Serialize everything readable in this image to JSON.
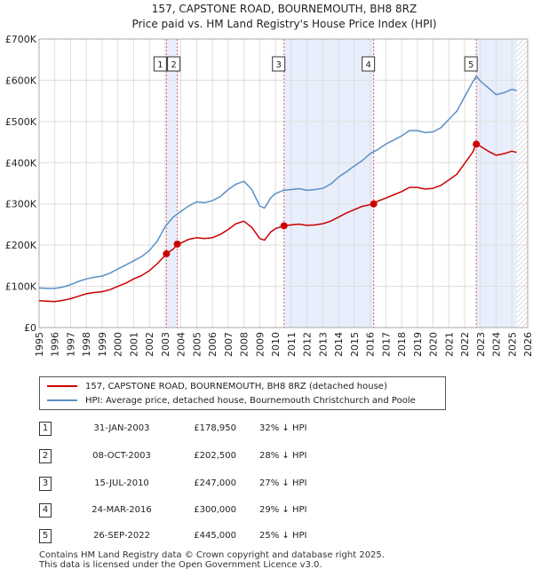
{
  "chart_data": {
    "type": "line",
    "title": "157, CAPSTONE ROAD, BOURNEMOUTH, BH8 8RZ",
    "subtitle": "Price paid vs. HM Land Registry's House Price Index (HPI)",
    "xlim": [
      1995,
      2026
    ],
    "ylim": [
      0,
      700000
    ],
    "x_ticks": [
      "1995",
      "1996",
      "1997",
      "1998",
      "1999",
      "2000",
      "2001",
      "2002",
      "2003",
      "2004",
      "2005",
      "2006",
      "2007",
      "2008",
      "2009",
      "2010",
      "2011",
      "2012",
      "2013",
      "2014",
      "2015",
      "2016",
      "2017",
      "2018",
      "2019",
      "2020",
      "2021",
      "2022",
      "2023",
      "2024",
      "2025",
      "2026"
    ],
    "y_ticks": [
      {
        "value": 0,
        "label": "£0"
      },
      {
        "value": 100000,
        "label": "£100K"
      },
      {
        "value": 200000,
        "label": "£200K"
      },
      {
        "value": 300000,
        "label": "£300K"
      },
      {
        "value": 400000,
        "label": "£400K"
      },
      {
        "value": 500000,
        "label": "£500K"
      },
      {
        "value": 600000,
        "label": "£600K"
      },
      {
        "value": 700000,
        "label": "£700K"
      }
    ],
    "series": [
      {
        "name": "HPI",
        "color": "#5b8fc7",
        "points": [
          [
            1995.0,
            96000
          ],
          [
            1995.5,
            95000
          ],
          [
            1996.0,
            95000
          ],
          [
            1996.5,
            98000
          ],
          [
            1997.0,
            104000
          ],
          [
            1997.5,
            112000
          ],
          [
            1998.0,
            118000
          ],
          [
            1998.5,
            122000
          ],
          [
            1999.0,
            125000
          ],
          [
            1999.5,
            132000
          ],
          [
            2000.0,
            142000
          ],
          [
            2000.5,
            152000
          ],
          [
            2001.0,
            162000
          ],
          [
            2001.5,
            172000
          ],
          [
            2002.0,
            187000
          ],
          [
            2002.5,
            210000
          ],
          [
            2003.0,
            245000
          ],
          [
            2003.5,
            268000
          ],
          [
            2004.0,
            282000
          ],
          [
            2004.5,
            295000
          ],
          [
            2005.0,
            305000
          ],
          [
            2005.5,
            303000
          ],
          [
            2006.0,
            308000
          ],
          [
            2006.5,
            318000
          ],
          [
            2007.0,
            335000
          ],
          [
            2007.5,
            348000
          ],
          [
            2008.0,
            355000
          ],
          [
            2008.5,
            335000
          ],
          [
            2009.0,
            295000
          ],
          [
            2009.3,
            290000
          ],
          [
            2009.7,
            315000
          ],
          [
            2010.0,
            325000
          ],
          [
            2010.5,
            333000
          ],
          [
            2011.0,
            335000
          ],
          [
            2011.5,
            337000
          ],
          [
            2012.0,
            333000
          ],
          [
            2012.5,
            335000
          ],
          [
            2013.0,
            338000
          ],
          [
            2013.5,
            348000
          ],
          [
            2014.0,
            365000
          ],
          [
            2014.5,
            378000
          ],
          [
            2015.0,
            392000
          ],
          [
            2015.5,
            405000
          ],
          [
            2016.0,
            422000
          ],
          [
            2016.5,
            432000
          ],
          [
            2017.0,
            445000
          ],
          [
            2017.5,
            455000
          ],
          [
            2018.0,
            465000
          ],
          [
            2018.5,
            478000
          ],
          [
            2019.0,
            478000
          ],
          [
            2019.5,
            473000
          ],
          [
            2020.0,
            475000
          ],
          [
            2020.5,
            485000
          ],
          [
            2021.0,
            505000
          ],
          [
            2021.5,
            525000
          ],
          [
            2022.0,
            560000
          ],
          [
            2022.5,
            595000
          ],
          [
            2022.75,
            610000
          ],
          [
            2023.0,
            598000
          ],
          [
            2023.5,
            582000
          ],
          [
            2024.0,
            565000
          ],
          [
            2024.5,
            570000
          ],
          [
            2025.0,
            578000
          ],
          [
            2025.3,
            575000
          ]
        ]
      },
      {
        "name": "Price Paid",
        "color": "#cc0000",
        "points": [
          [
            1995.0,
            65000
          ],
          [
            1995.5,
            64000
          ],
          [
            1996.0,
            63000
          ],
          [
            1996.5,
            66000
          ],
          [
            1997.0,
            70000
          ],
          [
            1997.5,
            76000
          ],
          [
            1998.0,
            82000
          ],
          [
            1998.5,
            85000
          ],
          [
            1999.0,
            87000
          ],
          [
            1999.5,
            92000
          ],
          [
            2000.0,
            100000
          ],
          [
            2000.5,
            108000
          ],
          [
            2001.0,
            118000
          ],
          [
            2001.5,
            126000
          ],
          [
            2002.0,
            138000
          ],
          [
            2002.5,
            155000
          ],
          [
            2003.08,
            178950
          ],
          [
            2003.5,
            190000
          ],
          [
            2003.77,
            202500
          ],
          [
            2004.0,
            205000
          ],
          [
            2004.5,
            214000
          ],
          [
            2005.0,
            218000
          ],
          [
            2005.5,
            216000
          ],
          [
            2006.0,
            218000
          ],
          [
            2006.5,
            226000
          ],
          [
            2007.0,
            238000
          ],
          [
            2007.5,
            252000
          ],
          [
            2008.0,
            258000
          ],
          [
            2008.5,
            243000
          ],
          [
            2009.0,
            216000
          ],
          [
            2009.3,
            212000
          ],
          [
            2009.7,
            232000
          ],
          [
            2010.0,
            240000
          ],
          [
            2010.54,
            247000
          ],
          [
            2011.0,
            249000
          ],
          [
            2011.5,
            251000
          ],
          [
            2012.0,
            248000
          ],
          [
            2012.5,
            249000
          ],
          [
            2013.0,
            252000
          ],
          [
            2013.5,
            258000
          ],
          [
            2014.0,
            268000
          ],
          [
            2014.5,
            278000
          ],
          [
            2015.0,
            286000
          ],
          [
            2015.5,
            294000
          ],
          [
            2016.23,
            300000
          ],
          [
            2016.5,
            307000
          ],
          [
            2017.0,
            314000
          ],
          [
            2017.5,
            322000
          ],
          [
            2018.0,
            330000
          ],
          [
            2018.5,
            340000
          ],
          [
            2019.0,
            340000
          ],
          [
            2019.5,
            336000
          ],
          [
            2020.0,
            338000
          ],
          [
            2020.5,
            345000
          ],
          [
            2021.0,
            358000
          ],
          [
            2021.5,
            372000
          ],
          [
            2022.0,
            398000
          ],
          [
            2022.5,
            425000
          ],
          [
            2022.74,
            445000
          ],
          [
            2023.0,
            440000
          ],
          [
            2023.5,
            428000
          ],
          [
            2024.0,
            418000
          ],
          [
            2024.5,
            422000
          ],
          [
            2025.0,
            428000
          ],
          [
            2025.3,
            425000
          ]
        ]
      }
    ],
    "markers": [
      {
        "num": "1",
        "x": 2003.08,
        "y": 178950
      },
      {
        "num": "2",
        "x": 2003.77,
        "y": 202500
      },
      {
        "num": "3",
        "x": 2010.54,
        "y": 247000
      },
      {
        "num": "4",
        "x": 2016.23,
        "y": 300000
      },
      {
        "num": "5",
        "x": 2022.74,
        "y": 445000
      }
    ],
    "shaded_spans": [
      [
        2003.08,
        2003.77
      ],
      [
        2010.54,
        2016.23
      ],
      [
        2022.74,
        2025.3
      ]
    ],
    "hatch_from": 2025.3
  },
  "legend": {
    "red_label": "157, CAPSTONE ROAD, BOURNEMOUTH, BH8 8RZ (detached house)",
    "blue_label": "HPI: Average price, detached house, Bournemouth Christchurch and Poole"
  },
  "transactions": [
    {
      "num": "1",
      "date": "31-JAN-2003",
      "price": "£178,950",
      "hpi": "32% ↓ HPI"
    },
    {
      "num": "2",
      "date": "08-OCT-2003",
      "price": "£202,500",
      "hpi": "28% ↓ HPI"
    },
    {
      "num": "3",
      "date": "15-JUL-2010",
      "price": "£247,000",
      "hpi": "27% ↓ HPI"
    },
    {
      "num": "4",
      "date": "24-MAR-2016",
      "price": "£300,000",
      "hpi": "29% ↓ HPI"
    },
    {
      "num": "5",
      "date": "26-SEP-2022",
      "price": "£445,000",
      "hpi": "25% ↓ HPI"
    }
  ],
  "footer": {
    "line1": "Contains HM Land Registry data © Crown copyright and database right 2025.",
    "line2": "This data is licensed under the Open Government Licence v3.0."
  }
}
